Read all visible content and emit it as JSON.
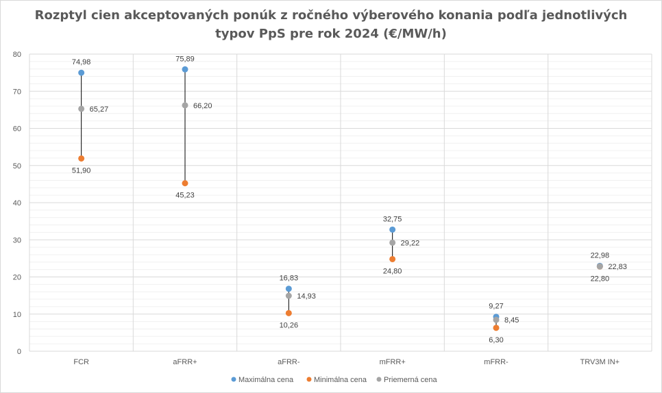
{
  "chart_data": {
    "type": "scatter",
    "title_line1": "Rozptyl cien akceptovaných ponúk z ročného výberového konania podľa jednotlivých",
    "title_line2": "typov PpS pre rok 2024 (€/MW/h)",
    "xlabel": "",
    "ylabel": "",
    "ylim": [
      0,
      80
    ],
    "yticks": [
      "0",
      "10",
      "20",
      "30",
      "40",
      "50",
      "60",
      "70",
      "80"
    ],
    "grid": true,
    "legend_position": "bottom",
    "categories": [
      "FCR",
      "aFRR+",
      "aFRR-",
      "mFRR+",
      "mFRR-",
      "TRV3M IN+"
    ],
    "series": [
      {
        "name": "Maximálna cena",
        "color": "#5b9bd5",
        "values": [
          74.98,
          75.89,
          16.83,
          32.75,
          9.27,
          22.98
        ],
        "labels": [
          "74,98",
          "75,89",
          "16,83",
          "32,75",
          "9,27",
          "22,98"
        ]
      },
      {
        "name": "Minimálna cena",
        "color": "#ed7d31",
        "values": [
          51.9,
          45.23,
          10.26,
          24.8,
          6.3,
          22.8
        ],
        "labels": [
          "51,90",
          "45,23",
          "10,26",
          "24,80",
          "6,30",
          "22,80"
        ]
      },
      {
        "name": "Priemerná cena",
        "color": "#a5a5a5",
        "values": [
          65.27,
          66.2,
          14.93,
          29.22,
          8.45,
          22.83
        ],
        "labels": [
          "65,27",
          "66,20",
          "14,93",
          "29,22",
          "8,45",
          "22,83"
        ]
      }
    ]
  }
}
